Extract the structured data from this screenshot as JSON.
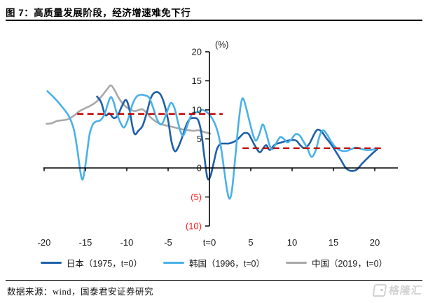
{
  "header": {
    "title": "图 7：高质量发展阶段，经济增速难免下行"
  },
  "footer": {
    "source": "数据来源：wind，国泰君安证券研究",
    "logo_text": "格隆汇"
  },
  "chart_data": {
    "type": "line",
    "grid": false,
    "legend_position": "bottom",
    "x_axis": {
      "min": -20,
      "max": 21,
      "line_from": -20.1,
      "line_to": 22.8,
      "ticks": [
        {
          "value": -20,
          "label": "-20"
        },
        {
          "value": -15,
          "label": "-15"
        },
        {
          "value": -10,
          "label": "-10"
        },
        {
          "value": -5,
          "label": "-5"
        },
        {
          "value": 0,
          "label": "t=0"
        },
        {
          "value": 5,
          "label": "5"
        },
        {
          "value": 10,
          "label": "10"
        },
        {
          "value": 15,
          "label": "15"
        },
        {
          "value": 20,
          "label": "20"
        }
      ],
      "label_color": "#1a1a1a"
    },
    "y_axis": {
      "min": -10,
      "max": 20,
      "unit": "(%)",
      "ticks": [
        {
          "value": 20,
          "label": "20",
          "color": "#1a1a1a"
        },
        {
          "value": 15,
          "label": "15",
          "color": "#1a1a1a"
        },
        {
          "value": 10,
          "label": "10",
          "color": "#1a1a1a"
        },
        {
          "value": 5,
          "label": "5",
          "color": "#1a1a1a"
        },
        {
          "value": 0,
          "label": "0",
          "color": "#1a1a1a"
        },
        {
          "value": -5,
          "label": "(5)",
          "color": "#ff1f1f"
        },
        {
          "value": -10,
          "label": "(10)",
          "color": "#ff1f1f"
        }
      ]
    },
    "axis_color": "#000000",
    "reference_lines": [
      {
        "y": 9.3,
        "x_start": -16,
        "x_end": 1.6,
        "color": "#c00000",
        "style": "dashed"
      },
      {
        "y": 3.4,
        "x_start": 4,
        "x_end": 21.2,
        "color": "#c00000",
        "style": "dashed"
      }
    ],
    "series": [
      {
        "name": "日本（1975，t=0）",
        "color": "#1f5fa8",
        "points": [
          [
            -13.6,
            12.3
          ],
          [
            -13.1,
            11.3
          ],
          [
            -12.6,
            9.1
          ],
          [
            -12.1,
            9.4
          ],
          [
            -11.6,
            8.6
          ],
          [
            -11.1,
            9.0
          ],
          [
            -10.6,
            10.6
          ],
          [
            -10.1,
            11.7
          ],
          [
            -9.7,
            10.2
          ],
          [
            -9.3,
            7.0
          ],
          [
            -9.0,
            5.8
          ],
          [
            -8.6,
            6.4
          ],
          [
            -8.1,
            7.2
          ],
          [
            -7.6,
            9.4
          ],
          [
            -7.1,
            12.0
          ],
          [
            -6.6,
            13.0
          ],
          [
            -6.0,
            12.8
          ],
          [
            -5.5,
            11.2
          ],
          [
            -5.0,
            8.2
          ],
          [
            -4.6,
            4.6
          ],
          [
            -4.2,
            2.9
          ],
          [
            -3.8,
            3.5
          ],
          [
            -3.3,
            5.3
          ],
          [
            -2.8,
            7.4
          ],
          [
            -2.4,
            8.4
          ],
          [
            -1.9,
            8.6
          ],
          [
            -1.4,
            8.3
          ],
          [
            -1.0,
            6.2
          ],
          [
            -0.6,
            1.8
          ],
          [
            -0.25,
            -1.7
          ],
          [
            0.1,
            -1.5
          ],
          [
            0.5,
            0.8
          ],
          [
            0.9,
            3.2
          ],
          [
            1.3,
            4.1
          ],
          [
            1.8,
            4.2
          ],
          [
            2.3,
            4.2
          ],
          [
            2.8,
            4.4
          ],
          [
            3.3,
            4.8
          ],
          [
            3.8,
            5.5
          ],
          [
            4.2,
            6.0
          ],
          [
            4.7,
            5.9
          ],
          [
            5.1,
            4.9
          ],
          [
            5.6,
            3.6
          ],
          [
            6.1,
            2.7
          ],
          [
            6.6,
            3.6
          ],
          [
            6.9,
            3.9
          ],
          [
            7.3,
            3.1
          ],
          [
            7.9,
            4.0
          ],
          [
            8.5,
            4.3
          ],
          [
            9.2,
            4.6
          ],
          [
            9.9,
            4.8
          ],
          [
            10.5,
            4.7
          ],
          [
            11.0,
            3.9
          ],
          [
            11.5,
            3.4
          ],
          [
            12.1,
            4.2
          ],
          [
            12.7,
            5.9
          ],
          [
            13.1,
            6.6
          ],
          [
            13.6,
            6.2
          ],
          [
            14.1,
            5.2
          ],
          [
            14.7,
            4.1
          ],
          [
            15.3,
            2.8
          ],
          [
            15.9,
            1.4
          ],
          [
            16.5,
            0.0
          ],
          [
            17.1,
            -0.5
          ],
          [
            17.8,
            -0.3
          ],
          [
            18.5,
            0.8
          ],
          [
            19.2,
            1.8
          ],
          [
            19.8,
            2.6
          ],
          [
            20.3,
            3.2
          ]
        ]
      },
      {
        "name": "韩国（1996，t=0）",
        "color": "#4ab1e8",
        "points": [
          [
            -19.6,
            13.2
          ],
          [
            -19.0,
            12.4
          ],
          [
            -18.4,
            11.5
          ],
          [
            -17.7,
            10.3
          ],
          [
            -17.0,
            8.9
          ],
          [
            -16.4,
            6.6
          ],
          [
            -16.0,
            3.3
          ],
          [
            -15.6,
            -0.8
          ],
          [
            -15.35,
            -2.0
          ],
          [
            -15.1,
            -0.4
          ],
          [
            -14.8,
            2.7
          ],
          [
            -14.5,
            5.8
          ],
          [
            -14.1,
            7.5
          ],
          [
            -13.7,
            8.0
          ],
          [
            -13.2,
            8.2
          ],
          [
            -12.7,
            9.2
          ],
          [
            -12.3,
            11.0
          ],
          [
            -11.95,
            12.2
          ],
          [
            -11.6,
            11.4
          ],
          [
            -11.2,
            9.4
          ],
          [
            -10.7,
            7.6
          ],
          [
            -10.3,
            7.0
          ],
          [
            -9.8,
            8.6
          ],
          [
            -9.3,
            11.0
          ],
          [
            -8.8,
            12.3
          ],
          [
            -8.3,
            12.6
          ],
          [
            -7.8,
            12.5
          ],
          [
            -7.3,
            12.1
          ],
          [
            -6.8,
            10.3
          ],
          [
            -6.3,
            8.2
          ],
          [
            -5.8,
            7.5
          ],
          [
            -5.3,
            9.0
          ],
          [
            -4.9,
            10.6
          ],
          [
            -4.6,
            11.2
          ],
          [
            -4.2,
            10.2
          ],
          [
            -3.8,
            7.8
          ],
          [
            -3.4,
            5.9
          ],
          [
            -3.1,
            5.7
          ],
          [
            -2.7,
            7.2
          ],
          [
            -2.3,
            8.8
          ],
          [
            -1.9,
            9.5
          ],
          [
            -1.4,
            9.6
          ],
          [
            -0.9,
            10.0
          ],
          [
            -0.4,
            9.7
          ],
          [
            0.1,
            9.0
          ],
          [
            0.6,
            7.8
          ],
          [
            1.0,
            6.2
          ],
          [
            1.4,
            3.5
          ],
          [
            1.8,
            -0.5
          ],
          [
            2.15,
            -4.0
          ],
          [
            2.45,
            -5.3
          ],
          [
            2.75,
            -3.6
          ],
          [
            3.1,
            1.5
          ],
          [
            3.5,
            7.5
          ],
          [
            3.85,
            11.3
          ],
          [
            4.1,
            11.9
          ],
          [
            4.45,
            10.3
          ],
          [
            4.85,
            8.0
          ],
          [
            5.3,
            5.6
          ],
          [
            5.65,
            4.7
          ],
          [
            6.05,
            5.9
          ],
          [
            6.45,
            7.5
          ],
          [
            6.85,
            6.1
          ],
          [
            7.25,
            4.0
          ],
          [
            7.6,
            3.2
          ],
          [
            8.05,
            4.2
          ],
          [
            8.55,
            5.3
          ],
          [
            9.0,
            5.0
          ],
          [
            9.45,
            4.4
          ],
          [
            9.9,
            4.9
          ],
          [
            10.4,
            5.8
          ],
          [
            10.9,
            5.6
          ],
          [
            11.4,
            4.5
          ],
          [
            11.9,
            3.2
          ],
          [
            12.35,
            1.9
          ],
          [
            12.85,
            3.0
          ],
          [
            13.35,
            5.6
          ],
          [
            13.75,
            6.5
          ],
          [
            14.2,
            5.8
          ],
          [
            14.7,
            4.6
          ],
          [
            15.3,
            3.5
          ],
          [
            15.9,
            3.0
          ],
          [
            16.5,
            2.9
          ],
          [
            17.1,
            3.2
          ],
          [
            17.7,
            3.5
          ],
          [
            18.3,
            3.3
          ],
          [
            18.9,
            3.1
          ],
          [
            19.5,
            3.1
          ],
          [
            20.3,
            3.4
          ]
        ]
      },
      {
        "name": "中国（2019，t=0）",
        "color": "#a8a8a8",
        "points": [
          [
            -19.7,
            7.6
          ],
          [
            -19.1,
            7.7
          ],
          [
            -18.4,
            8.1
          ],
          [
            -17.8,
            8.2
          ],
          [
            -17.1,
            8.4
          ],
          [
            -16.4,
            9.0
          ],
          [
            -15.7,
            9.8
          ],
          [
            -15.0,
            10.3
          ],
          [
            -14.3,
            10.8
          ],
          [
            -13.6,
            11.5
          ],
          [
            -12.9,
            12.6
          ],
          [
            -12.3,
            13.7
          ],
          [
            -11.9,
            14.2
          ],
          [
            -11.4,
            13.2
          ],
          [
            -11.0,
            12.1
          ],
          [
            -10.5,
            11.1
          ],
          [
            -10.0,
            10.4
          ],
          [
            -9.5,
            10.0
          ],
          [
            -9.0,
            9.8
          ],
          [
            -8.5,
            10.0
          ],
          [
            -8.1,
            10.1
          ],
          [
            -7.6,
            9.5
          ],
          [
            -7.1,
            8.7
          ],
          [
            -6.6,
            8.1
          ],
          [
            -6.1,
            7.7
          ],
          [
            -5.5,
            7.4
          ],
          [
            -4.9,
            7.2
          ],
          [
            -4.3,
            7.0
          ],
          [
            -3.7,
            6.8
          ],
          [
            -3.1,
            6.6
          ],
          [
            -2.5,
            6.5
          ],
          [
            -1.9,
            6.4
          ],
          [
            -1.4,
            6.5
          ],
          [
            -0.9,
            6.3
          ],
          [
            -0.4,
            6.1
          ],
          [
            0.1,
            5.9
          ]
        ]
      }
    ]
  }
}
